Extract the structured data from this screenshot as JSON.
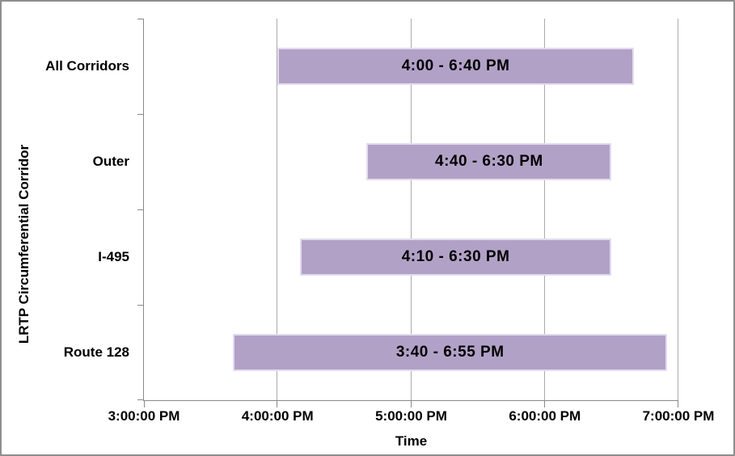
{
  "window": {
    "background_color": "#ffffff",
    "border_color": "#8e8e8e"
  },
  "chart_data": {
    "type": "bar",
    "orientation": "horizontal",
    "title": "",
    "xlabel": "Time",
    "ylabel": "LRTP Circumferential Corridor",
    "grid": true,
    "legend": false,
    "x_axis": {
      "tick_labels": [
        "3:00:00 PM",
        "4:00:00 PM",
        "5:00:00 PM",
        "6:00:00 PM",
        "7:00:00 PM"
      ],
      "tick_hours": [
        15,
        16,
        17,
        18,
        19
      ],
      "range_hours": [
        15,
        19
      ]
    },
    "categories": [
      "All Corridors",
      "Outer",
      "I-495",
      "Route 128"
    ],
    "bars": [
      {
        "category": "All Corridors",
        "label": "4:00 - 6:40 PM",
        "start_hour": 16.0,
        "end_hour": 18.6667
      },
      {
        "category": "Outer",
        "label": "4:40 - 6:30 PM",
        "start_hour": 16.6667,
        "end_hour": 18.5
      },
      {
        "category": "I-495",
        "label": "4:10 - 6:30 PM",
        "start_hour": 16.1667,
        "end_hour": 18.5
      },
      {
        "category": "Route 128",
        "label": "3:40 - 6:55 PM",
        "start_hour": 15.6667,
        "end_hour": 18.9167
      }
    ],
    "colors": {
      "bar_fill": "#b2a1c7",
      "bar_border": "#e2dcee",
      "gridline": "#ababab",
      "axis_line": "#898989",
      "text": "#000000"
    }
  }
}
